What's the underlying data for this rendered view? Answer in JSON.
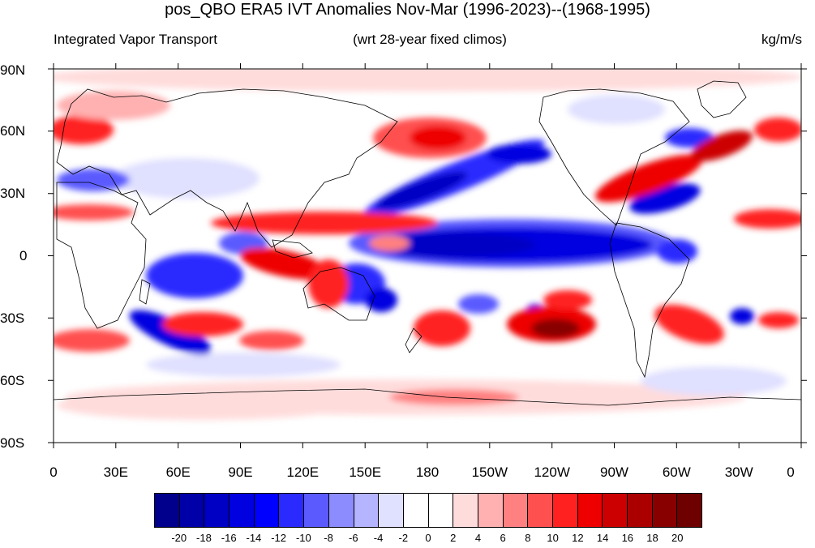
{
  "title": "pos_QBO ERA5 IVT Anomalies Nov-Mar (1996-2023)--(1968-1995)",
  "subtitle_left": "Integrated Vapor Transport",
  "subtitle_center": "(wrt 28-year fixed climos)",
  "subtitle_right": "kg/m/s",
  "lat_ticks": [
    "90N",
    "60N",
    "30N",
    "0",
    "30S",
    "60S",
    "90S"
  ],
  "lon_ticks": [
    "0",
    "30E",
    "60E",
    "90E",
    "120E",
    "150E",
    "180",
    "150W",
    "120W",
    "90W",
    "60W",
    "30W",
    "0"
  ],
  "colorbar": {
    "labels": [
      "-20",
      "-18",
      "-16",
      "-14",
      "-12",
      "-10",
      "-8",
      "-6",
      "-4",
      "-2",
      "0",
      "2",
      "4",
      "6",
      "8",
      "10",
      "12",
      "14",
      "16",
      "18",
      "20"
    ],
    "colors": [
      "#00008c",
      "#0000a8",
      "#0000c4",
      "#0000e0",
      "#0000ff",
      "#2a2aff",
      "#5a5aff",
      "#8c8cff",
      "#b4b4ff",
      "#e0e0ff",
      "#ffffff",
      "#ffffff",
      "#ffdcdc",
      "#ffb0b0",
      "#ff8080",
      "#ff5050",
      "#ff2020",
      "#ee0000",
      "#cc0000",
      "#aa0000",
      "#880000",
      "#6e0000"
    ]
  }
}
